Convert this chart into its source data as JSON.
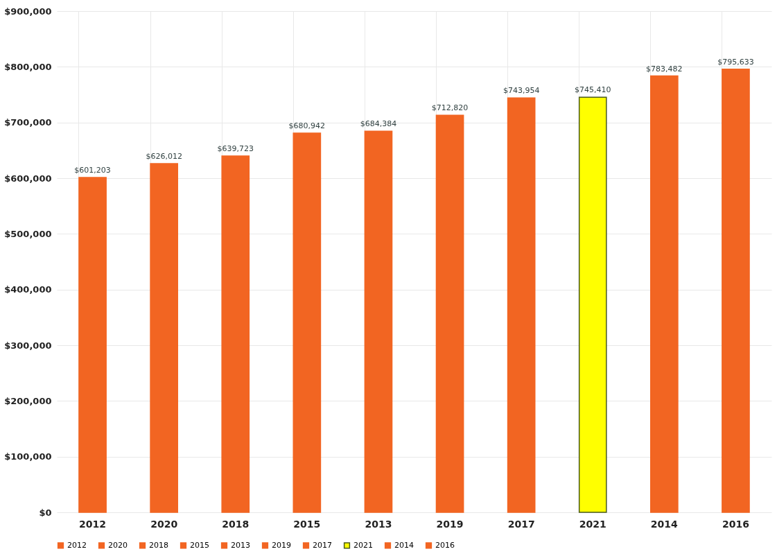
{
  "chart_data": {
    "type": "bar",
    "categories": [
      "2012",
      "2020",
      "2018",
      "2015",
      "2013",
      "2019",
      "2017",
      "2021",
      "2014",
      "2016"
    ],
    "series": [
      {
        "name": "2012",
        "color": "#f26522",
        "values": [
          601203,
          null,
          null,
          null,
          null,
          null,
          null,
          null,
          null,
          null
        ],
        "value_labels": [
          "$601,203",
          null,
          null,
          null,
          null,
          null,
          null,
          null,
          null,
          null
        ]
      },
      {
        "name": "2020",
        "color": "#f26522",
        "values": [
          null,
          626012,
          null,
          null,
          null,
          null,
          null,
          null,
          null,
          null
        ],
        "value_labels": [
          null,
          "$626,012",
          null,
          null,
          null,
          null,
          null,
          null,
          null,
          null
        ]
      },
      {
        "name": "2018",
        "color": "#f26522",
        "values": [
          null,
          null,
          639723,
          null,
          null,
          null,
          null,
          null,
          null,
          null
        ],
        "value_labels": [
          null,
          null,
          "$639,723",
          null,
          null,
          null,
          null,
          null,
          null,
          null
        ]
      },
      {
        "name": "2015",
        "color": "#f26522",
        "values": [
          null,
          null,
          null,
          680942,
          null,
          null,
          null,
          null,
          null,
          null
        ],
        "value_labels": [
          null,
          null,
          null,
          "$680,942",
          null,
          null,
          null,
          null,
          null,
          null
        ]
      },
      {
        "name": "2013",
        "color": "#f26522",
        "values": [
          null,
          null,
          null,
          null,
          684384,
          null,
          null,
          null,
          null,
          null
        ],
        "value_labels": [
          null,
          null,
          null,
          null,
          "$684,384",
          null,
          null,
          null,
          null,
          null
        ]
      },
      {
        "name": "2019",
        "color": "#f26522",
        "values": [
          null,
          null,
          null,
          null,
          null,
          712820,
          null,
          null,
          null,
          null
        ],
        "value_labels": [
          null,
          null,
          null,
          null,
          null,
          "$712,820",
          null,
          null,
          null,
          null
        ]
      },
      {
        "name": "2017",
        "color": "#f26522",
        "values": [
          null,
          null,
          null,
          null,
          null,
          null,
          743954,
          null,
          null,
          null
        ],
        "value_labels": [
          null,
          null,
          null,
          null,
          null,
          null,
          "$743,954",
          null,
          null,
          null
        ]
      },
      {
        "name": "2021",
        "color": "#ffff00",
        "values": [
          null,
          null,
          null,
          null,
          null,
          null,
          null,
          745410,
          null,
          null
        ],
        "value_labels": [
          null,
          null,
          null,
          null,
          null,
          null,
          null,
          "$745,410",
          null,
          null
        ]
      },
      {
        "name": "2014",
        "color": "#f26522",
        "values": [
          null,
          null,
          null,
          null,
          null,
          null,
          null,
          null,
          783482,
          null
        ],
        "value_labels": [
          null,
          null,
          null,
          null,
          null,
          null,
          null,
          null,
          "$783,482",
          null
        ]
      },
      {
        "name": "2016",
        "color": "#f26522",
        "values": [
          null,
          null,
          null,
          null,
          null,
          null,
          null,
          null,
          null,
          795633
        ],
        "value_labels": [
          null,
          null,
          null,
          null,
          null,
          null,
          null,
          null,
          null,
          "$795,633"
        ]
      }
    ],
    "ylim": [
      0,
      900000
    ],
    "yticks": [
      {
        "value": 0,
        "label": "$0"
      },
      {
        "value": 100000,
        "label": "$100,000"
      },
      {
        "value": 200000,
        "label": "$200,000"
      },
      {
        "value": 300000,
        "label": "$300,000"
      },
      {
        "value": 400000,
        "label": "$400,000"
      },
      {
        "value": 500000,
        "label": "$500,000"
      },
      {
        "value": 600000,
        "label": "$600,000"
      },
      {
        "value": 700000,
        "label": "$700,000"
      },
      {
        "value": 800000,
        "label": "$800,000"
      },
      {
        "value": 900000,
        "label": "$900,000"
      }
    ],
    "grid": true,
    "legend": "bottom"
  }
}
